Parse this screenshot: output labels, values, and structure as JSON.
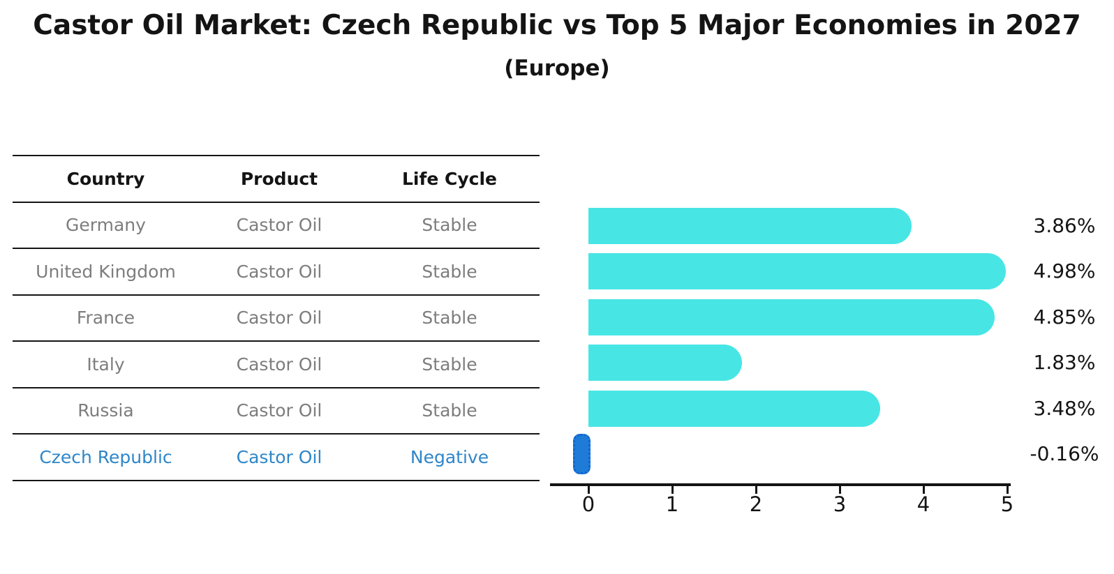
{
  "page": {
    "title": "Castor Oil Market: Czech Republic vs Top 5 Major Economies in 2027",
    "subtitle": "(Europe)"
  },
  "table": {
    "headers": [
      "Country",
      "Product",
      "Life Cycle"
    ],
    "rows": [
      {
        "country": "Germany",
        "product": "Castor Oil",
        "life_cycle": "Stable"
      },
      {
        "country": "United Kingdom",
        "product": "Castor Oil",
        "life_cycle": "Stable"
      },
      {
        "country": "France",
        "product": "Castor Oil",
        "life_cycle": "Stable"
      },
      {
        "country": "Italy",
        "product": "Castor Oil",
        "life_cycle": "Stable"
      },
      {
        "country": "Russia",
        "product": "Castor Oil",
        "life_cycle": "Stable"
      },
      {
        "country": "Czech Republic",
        "product": "Castor Oil",
        "life_cycle": "Negative"
      }
    ]
  },
  "chart_data": {
    "type": "bar",
    "orientation": "horizontal",
    "title": "Castor Oil Market: Czech Republic vs Top 5 Major Economies in 2027 (Europe)",
    "categories": [
      "Germany",
      "United Kingdom",
      "France",
      "Italy",
      "Russia",
      "Czech Republic"
    ],
    "values": [
      3.86,
      4.98,
      4.85,
      1.83,
      3.48,
      -0.16
    ],
    "value_labels": [
      "3.86%",
      "4.98%",
      "4.85%",
      "1.83%",
      "3.48%",
      "-0.16%"
    ],
    "xticks": [
      "0",
      "1",
      "2",
      "3",
      "4",
      "5"
    ],
    "xlim": [
      -0.5,
      5.5
    ],
    "grid": false,
    "legend": false,
    "highlight_index": 5,
    "bar_color": "#48E5E5",
    "highlight_bar_color": "#1E7CD8",
    "highlight_border_color": "#1462CE"
  },
  "colors": {
    "text": "#141414",
    "muted_text": "#7d7d7d",
    "highlight_text": "#2E86C9"
  }
}
